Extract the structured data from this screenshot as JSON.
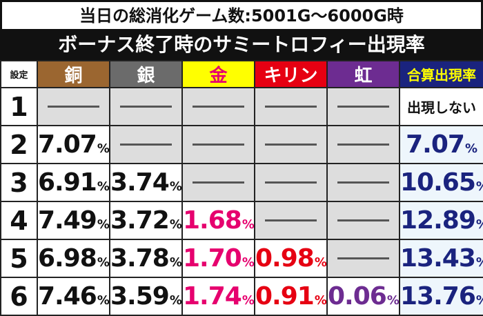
{
  "subtitle": "当日の総消化ゲーム数:5001G〜6000G時",
  "title": "ボーナス終了時のサミートロフィー出現率",
  "headers": {
    "setting": "設定",
    "bronze": "銅",
    "silver": "銀",
    "gold": "金",
    "kirin": "キリン",
    "rainbow": "虹",
    "total": "合算出現率"
  },
  "none_text": "出現しない",
  "percent_sign": "%",
  "colors": {
    "bronze_header": "#9b6630",
    "silver_header": "#6b6b6b",
    "gold_header": "#ffff00",
    "kirin_header": "#e60012",
    "rainbow_header": "#6d2c91",
    "total_header": "#1a237e",
    "gold_text": "#e6006e",
    "kirin_text": "#e60012",
    "rainbow_text": "#6d2c91",
    "total_text": "#1a237e"
  },
  "rows": [
    {
      "setting": "1",
      "bronze": "",
      "silver": "",
      "gold": "",
      "kirin": "",
      "rainbow": "",
      "total": ""
    },
    {
      "setting": "2",
      "bronze": "7.07",
      "silver": "",
      "gold": "",
      "kirin": "",
      "rainbow": "",
      "total": "7.07"
    },
    {
      "setting": "3",
      "bronze": "6.91",
      "silver": "3.74",
      "gold": "",
      "kirin": "",
      "rainbow": "",
      "total": "10.65"
    },
    {
      "setting": "4",
      "bronze": "7.49",
      "silver": "3.72",
      "gold": "1.68",
      "kirin": "",
      "rainbow": "",
      "total": "12.89"
    },
    {
      "setting": "5",
      "bronze": "6.98",
      "silver": "3.78",
      "gold": "1.70",
      "kirin": "0.98",
      "rainbow": "",
      "total": "13.43"
    },
    {
      "setting": "6",
      "bronze": "7.46",
      "silver": "3.59",
      "gold": "1.74",
      "kirin": "0.91",
      "rainbow": "0.06",
      "total": "13.76"
    }
  ]
}
